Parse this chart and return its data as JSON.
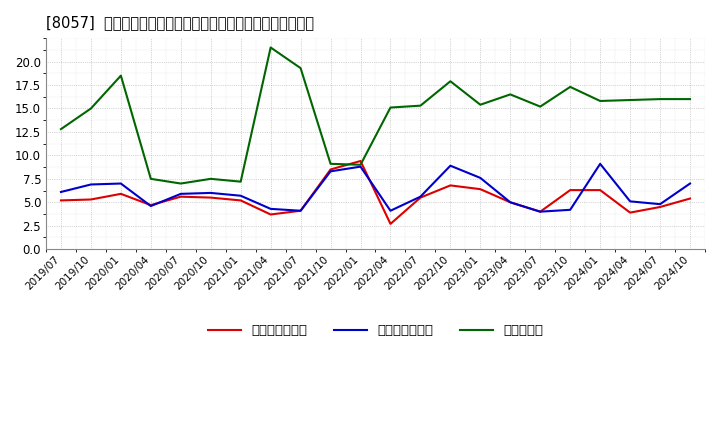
{
  "title": "[8057]  売上債権回転率、買入債務回転率、在庫回転率の推移",
  "labels": [
    "2019/07",
    "2019/10",
    "2020/01",
    "2020/04",
    "2020/07",
    "2020/10",
    "2021/01",
    "2021/04",
    "2021/07",
    "2021/10",
    "2022/01",
    "2022/04",
    "2022/07",
    "2022/10",
    "2023/01",
    "2023/04",
    "2023/07",
    "2023/10",
    "2024/01",
    "2024/04",
    "2024/07",
    "2024/10"
  ],
  "urikake": [
    5.2,
    5.3,
    5.9,
    4.7,
    5.6,
    5.5,
    5.2,
    3.7,
    4.1,
    8.5,
    9.4,
    2.7,
    5.5,
    6.8,
    6.4,
    5.0,
    4.0,
    6.3,
    6.3,
    3.9,
    4.5,
    5.4
  ],
  "kaiire": [
    6.1,
    6.9,
    7.0,
    4.6,
    5.9,
    6.0,
    5.7,
    4.3,
    4.1,
    8.3,
    8.8,
    4.1,
    5.6,
    8.9,
    7.6,
    5.0,
    4.0,
    4.2,
    9.1,
    5.1,
    4.8,
    7.0
  ],
  "zaiko": [
    12.8,
    15.0,
    18.5,
    7.5,
    7.0,
    7.5,
    7.2,
    21.5,
    19.3,
    9.1,
    9.0,
    15.1,
    15.3,
    17.9,
    15.4,
    16.5,
    15.2,
    17.3,
    15.8,
    15.9,
    16.0,
    16.0
  ],
  "urikake_color": "#dd0000",
  "kaiire_color": "#0000cc",
  "zaiko_color": "#006600",
  "ylim": [
    0.0,
    22.5
  ],
  "yticks": [
    0.0,
    2.5,
    5.0,
    7.5,
    10.0,
    12.5,
    15.0,
    17.5,
    20.0
  ],
  "background_color": "#ffffff",
  "plot_bg_color": "#ffffff",
  "grid_color": "#999999",
  "legend_labels": [
    "売上債権回転率",
    "買入債務回転率",
    "在庫回転率"
  ]
}
